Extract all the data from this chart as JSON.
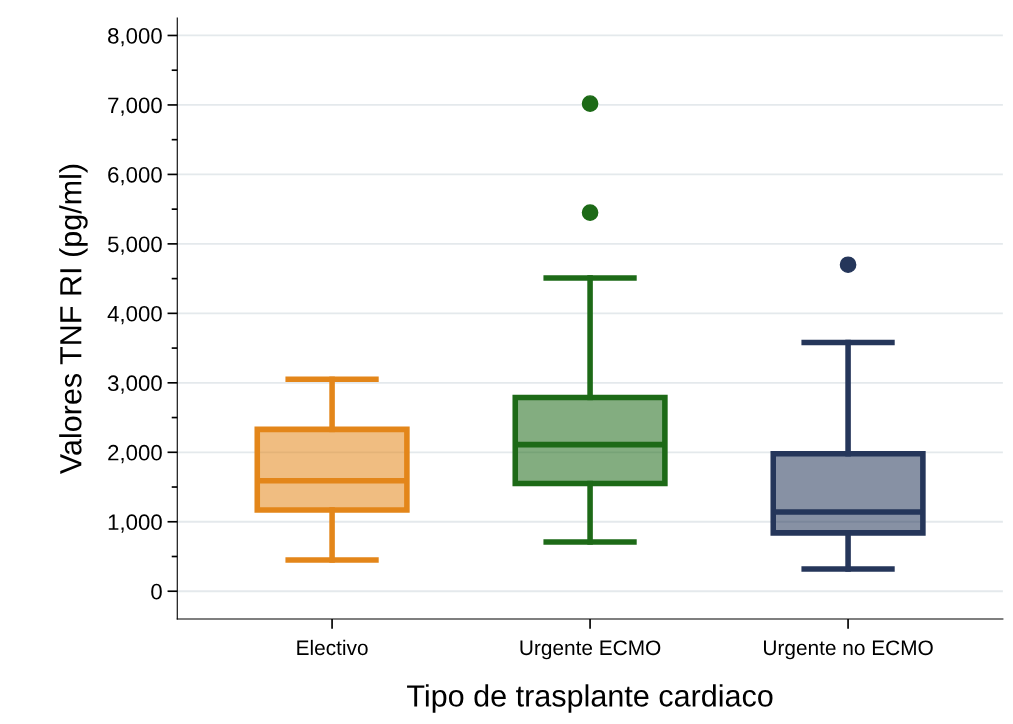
{
  "chart_data": {
    "type": "box",
    "xlabel": "Tipo de trasplante cardiaco",
    "ylabel": "Valores TNF RI (pg/ml)",
    "categories": [
      "Electivo",
      "Urgente ECMO",
      "Urgente no ECMO"
    ],
    "colors": [
      "#e3861a",
      "#1d6a17",
      "#25365a"
    ],
    "boxes": [
      {
        "low": 450,
        "q1": 1170,
        "median": 1590,
        "q3": 2330,
        "high": 3050
      },
      {
        "low": 710,
        "q1": 1550,
        "median": 2110,
        "q3": 2790,
        "high": 4510,
        "outliers": [
          5450,
          7020
        ]
      },
      {
        "low": 320,
        "q1": 840,
        "median": 1140,
        "q3": 1980,
        "high": 3580,
        "outliers": [
          4700
        ]
      }
    ],
    "ylim": [
      -400,
      8250
    ],
    "yticks": [
      {
        "value": 0,
        "label": "0"
      },
      {
        "value": 500,
        "label": null
      },
      {
        "value": 1000,
        "label": "1,000"
      },
      {
        "value": 1500,
        "label": null
      },
      {
        "value": 2000,
        "label": "2,000"
      },
      {
        "value": 2500,
        "label": null
      },
      {
        "value": 3000,
        "label": "3,000"
      },
      {
        "value": 3500,
        "label": null
      },
      {
        "value": 4000,
        "label": "4,000"
      },
      {
        "value": 4500,
        "label": null
      },
      {
        "value": 5000,
        "label": "5,000"
      },
      {
        "value": 5500,
        "label": null
      },
      {
        "value": 6000,
        "label": "6,000"
      },
      {
        "value": 6500,
        "label": null
      },
      {
        "value": 7000,
        "label": "7,000"
      },
      {
        "value": 7500,
        "label": null
      },
      {
        "value": 8000,
        "label": "8,000"
      }
    ],
    "grid": "y"
  }
}
